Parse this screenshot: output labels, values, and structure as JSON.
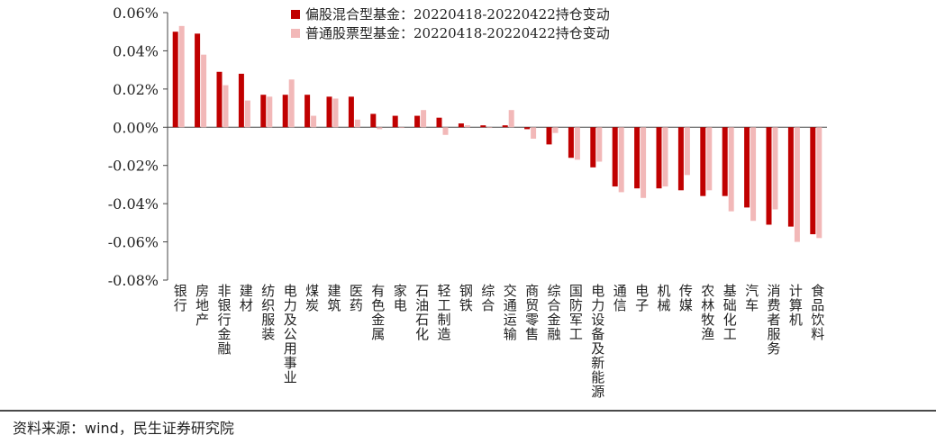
{
  "chart_data": {
    "type": "bar",
    "title": "",
    "xlabel": "",
    "ylabel": "",
    "ylim": [
      -0.08,
      0.06
    ],
    "yticks": [
      "0.06%",
      "0.04%",
      "0.02%",
      "0.00%",
      "-0.02%",
      "-0.04%",
      "-0.06%",
      "-0.08%"
    ],
    "y_unit": "%",
    "legend_position": "top-center",
    "grid": false,
    "categories": [
      "银行",
      "房地产",
      "非银行金融",
      "建材",
      "纺织服装",
      "电力及公用事业",
      "煤炭",
      "建筑",
      "医药",
      "有色金属",
      "家电",
      "石油石化",
      "轻工制造",
      "钢铁",
      "综合",
      "交通运输",
      "商贸零售",
      "综合金融",
      "国防军工",
      "电力设备及新能源",
      "通信",
      "电子",
      "机械",
      "传媒",
      "农林牧渔",
      "基础化工",
      "汽车",
      "消费者服务",
      "计算机",
      "食品饮料"
    ],
    "series": [
      {
        "name": "偏股混合型基金：20220418-20220422持仓变动",
        "color": "#c00000",
        "values": [
          0.05,
          0.049,
          0.029,
          0.028,
          0.017,
          0.017,
          0.017,
          0.016,
          0.016,
          0.007,
          0.006,
          0.006,
          0.005,
          0.002,
          0.001,
          0.001,
          -0.001,
          -0.009,
          -0.016,
          -0.021,
          -0.031,
          -0.032,
          -0.032,
          -0.033,
          -0.036,
          -0.036,
          -0.042,
          -0.051,
          -0.052,
          -0.056
        ]
      },
      {
        "name": "普通股票型基金：20220418-20220422持仓变动",
        "color": "#f2b8b8",
        "values": [
          0.053,
          0.038,
          0.022,
          0.014,
          0.016,
          0.025,
          0.006,
          0.015,
          0.004,
          -0.001,
          0.0,
          0.009,
          -0.004,
          0.001,
          0.0,
          0.009,
          -0.006,
          -0.003,
          -0.017,
          -0.018,
          -0.034,
          -0.037,
          -0.031,
          -0.025,
          -0.033,
          -0.044,
          -0.049,
          -0.043,
          -0.06,
          -0.058
        ]
      }
    ]
  },
  "source": "资料来源：wind，民生证券研究院"
}
